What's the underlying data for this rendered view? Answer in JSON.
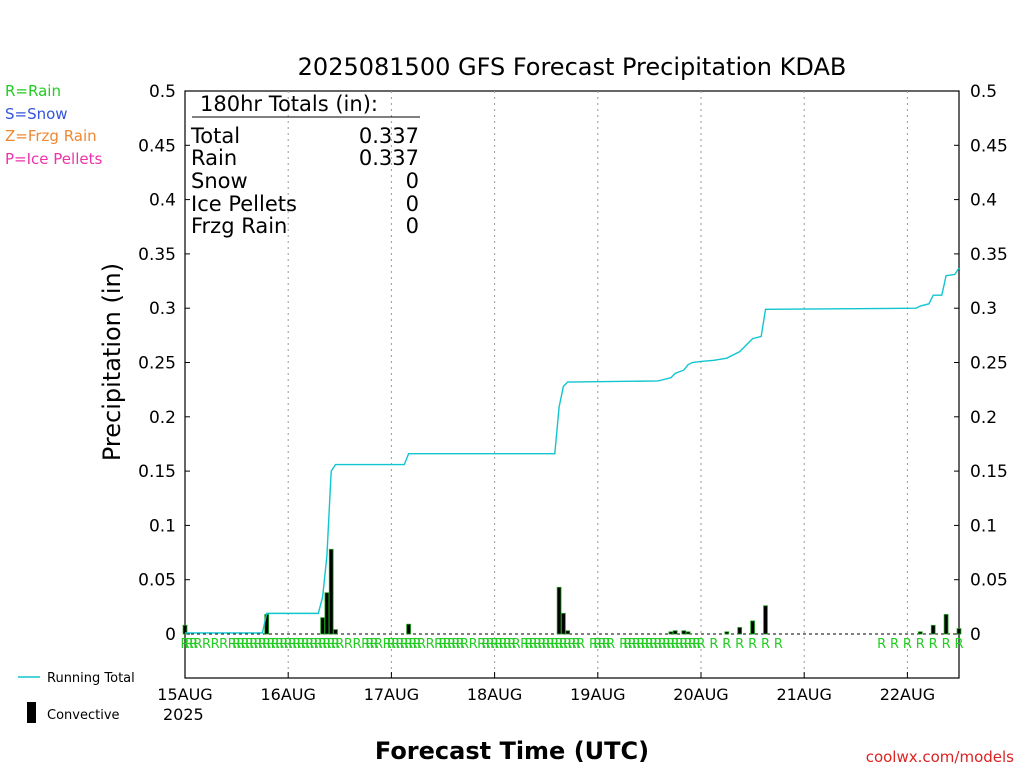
{
  "chart_data": {
    "type": "bar",
    "title": "2025081500 GFS Forecast Precipitation KDAB",
    "ylabel": "Precipitation (in)",
    "xlabel": "Forecast Time (UTC)",
    "ylim": [
      0,
      0.5
    ],
    "x_unit": "hours since 2025-08-15 00Z",
    "x_range_hours": [
      0,
      180
    ],
    "y_ticks": [
      "0",
      "0.05",
      "0.1",
      "0.15",
      "0.2",
      "0.25",
      "0.3",
      "0.35",
      "0.4",
      "0.45",
      "0.5"
    ],
    "x_ticks": [
      {
        "label": "15AUG",
        "hour": 0
      },
      {
        "label": "16AUG",
        "hour": 24
      },
      {
        "label": "17AUG",
        "hour": 48
      },
      {
        "label": "18AUG",
        "hour": 72
      },
      {
        "label": "19AUG",
        "hour": 96
      },
      {
        "label": "20AUG",
        "hour": 120
      },
      {
        "label": "21AUG",
        "hour": 144
      },
      {
        "label": "22AUG",
        "hour": 168
      }
    ],
    "year_label": "2025",
    "grid": "vertical dotted at each day",
    "legend_left": [
      {
        "label": "R=Rain",
        "color": "#22cc22"
      },
      {
        "label": "S=Snow",
        "color": "#3355dd"
      },
      {
        "label": "Z=Frzg Rain",
        "color": "#ee8833"
      },
      {
        "label": "P=Ice Pellets",
        "color": "#ee33aa"
      }
    ],
    "legend_bottom": [
      {
        "label": "Running Total",
        "color": "#11c5d0",
        "kind": "line"
      },
      {
        "label": "Convective",
        "color": "#000000",
        "kind": "bar"
      }
    ],
    "totals_box": {
      "header": "180hr Totals (in):",
      "rows": [
        {
          "label": "Total",
          "value": "0.337"
        },
        {
          "label": "Rain",
          "value": "0.337"
        },
        {
          "label": "Snow",
          "value": "0"
        },
        {
          "label": "Ice Pellets",
          "value": "0"
        },
        {
          "label": "Frzg Rain",
          "value": "0"
        }
      ]
    },
    "bars": [
      {
        "hour": 0,
        "value": 0.008
      },
      {
        "hour": 19,
        "value": 0.018
      },
      {
        "hour": 32,
        "value": 0.015
      },
      {
        "hour": 33,
        "value": 0.038
      },
      {
        "hour": 34,
        "value": 0.078
      },
      {
        "hour": 35,
        "value": 0.004
      },
      {
        "hour": 52,
        "value": 0.009
      },
      {
        "hour": 87,
        "value": 0.043
      },
      {
        "hour": 88,
        "value": 0.019
      },
      {
        "hour": 89,
        "value": 0.003
      },
      {
        "hour": 113,
        "value": 0.002
      },
      {
        "hour": 114,
        "value": 0.003
      },
      {
        "hour": 116,
        "value": 0.003
      },
      {
        "hour": 117,
        "value": 0.002
      },
      {
        "hour": 126,
        "value": 0.002
      },
      {
        "hour": 129,
        "value": 0.006
      },
      {
        "hour": 132,
        "value": 0.012
      },
      {
        "hour": 135,
        "value": 0.026
      },
      {
        "hour": 171,
        "value": 0.002
      },
      {
        "hour": 174,
        "value": 0.008
      },
      {
        "hour": 177,
        "value": 0.018
      },
      {
        "hour": 180,
        "value": 0.005
      }
    ],
    "running_total": [
      {
        "hour": 0,
        "value": 0.001
      },
      {
        "hour": 18,
        "value": 0.001
      },
      {
        "hour": 19,
        "value": 0.019
      },
      {
        "hour": 31,
        "value": 0.019
      },
      {
        "hour": 32,
        "value": 0.034
      },
      {
        "hour": 33,
        "value": 0.072
      },
      {
        "hour": 34,
        "value": 0.15
      },
      {
        "hour": 35,
        "value": 0.156
      },
      {
        "hour": 51,
        "value": 0.156
      },
      {
        "hour": 52,
        "value": 0.166
      },
      {
        "hour": 86,
        "value": 0.166
      },
      {
        "hour": 87,
        "value": 0.209
      },
      {
        "hour": 88,
        "value": 0.228
      },
      {
        "hour": 89,
        "value": 0.232
      },
      {
        "hour": 110,
        "value": 0.233
      },
      {
        "hour": 111,
        "value": 0.234
      },
      {
        "hour": 113,
        "value": 0.236
      },
      {
        "hour": 114,
        "value": 0.24
      },
      {
        "hour": 116,
        "value": 0.243
      },
      {
        "hour": 117,
        "value": 0.248
      },
      {
        "hour": 118,
        "value": 0.25
      },
      {
        "hour": 120,
        "value": 0.251
      },
      {
        "hour": 123,
        "value": 0.252
      },
      {
        "hour": 126,
        "value": 0.254
      },
      {
        "hour": 129,
        "value": 0.26
      },
      {
        "hour": 132,
        "value": 0.272
      },
      {
        "hour": 134,
        "value": 0.274
      },
      {
        "hour": 135,
        "value": 0.299
      },
      {
        "hour": 170,
        "value": 0.3
      },
      {
        "hour": 171,
        "value": 0.302
      },
      {
        "hour": 173,
        "value": 0.304
      },
      {
        "hour": 174,
        "value": 0.312
      },
      {
        "hour": 176,
        "value": 0.312
      },
      {
        "hour": 177,
        "value": 0.33
      },
      {
        "hour": 179,
        "value": 0.331
      },
      {
        "hour": 180,
        "value": 0.337
      }
    ],
    "ptype_hours": [
      0,
      1,
      2,
      3,
      5,
      7,
      9,
      11,
      12,
      13,
      14,
      15,
      16,
      17,
      18,
      19,
      20,
      21,
      22,
      23,
      24,
      25,
      26,
      27,
      28,
      29,
      30,
      31,
      32,
      33,
      34,
      35,
      36,
      38,
      40,
      42,
      43,
      44,
      45,
      47,
      48,
      49,
      50,
      51,
      52,
      53,
      54,
      55,
      57,
      59,
      60,
      61,
      62,
      63,
      64,
      65,
      67,
      69,
      70,
      71,
      72,
      73,
      74,
      75,
      76,
      77,
      79,
      80,
      81,
      82,
      83,
      84,
      85,
      86,
      87,
      88,
      89,
      90,
      91,
      92,
      95,
      96,
      97,
      98,
      99,
      102,
      103,
      104,
      105,
      106,
      107,
      108,
      109,
      110,
      111,
      112,
      113,
      114,
      115,
      116,
      117,
      118,
      119,
      120,
      123,
      126,
      129,
      132,
      135,
      138,
      162,
      165,
      168,
      171,
      174,
      177,
      180
    ],
    "ptype_letter": "R"
  },
  "footer_credit": "coolwx.com/models",
  "colors": {
    "running_total": "#11c5d0",
    "bar_fill": "#000000",
    "bar_edge": "#1aa01a",
    "rain": "#22cc22",
    "credit": "#dd2222"
  }
}
